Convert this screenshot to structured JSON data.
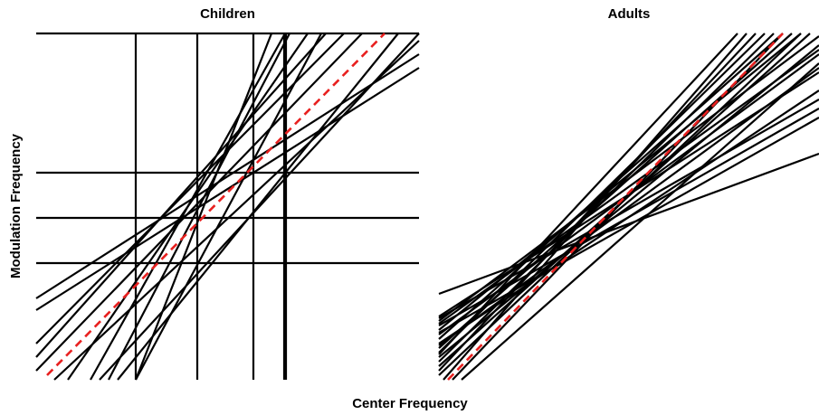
{
  "labels": {
    "x": "Center Frequency",
    "y": "Modulation Frequency"
  },
  "chart_data": [
    {
      "type": "line",
      "title": "Children",
      "xlim": [
        0,
        423
      ],
      "ylim": [
        0,
        383
      ],
      "series": [
        {
          "color": "#000000",
          "x": [
            0,
            423
          ],
          "values": [
            383,
            383
          ]
        },
        {
          "color": "#000000",
          "x": [
            0,
            423
          ],
          "values": [
            229,
            229
          ]
        },
        {
          "color": "#000000",
          "x": [
            0,
            423
          ],
          "values": [
            179,
            179
          ]
        },
        {
          "color": "#000000",
          "x": [
            0,
            423
          ],
          "values": [
            129,
            129
          ]
        },
        {
          "color": "#000000",
          "x": [
            110,
            110
          ],
          "values": [
            0,
            383
          ]
        },
        {
          "color": "#000000",
          "x": [
            178,
            178
          ],
          "values": [
            0,
            383
          ]
        },
        {
          "color": "#000000",
          "x": [
            240,
            240
          ],
          "values": [
            0,
            383
          ]
        },
        {
          "color": "#000000",
          "x": [
            274,
            274
          ],
          "values": [
            0,
            383
          ]
        },
        {
          "color": "#000000",
          "x": [
            276,
            276
          ],
          "values": [
            0,
            383
          ]
        },
        {
          "color": "#000000",
          "x": [
            0,
            423
          ],
          "values": [
            90,
            360
          ]
        },
        {
          "color": "#000000",
          "x": [
            0,
            423
          ],
          "values": [
            77,
            345
          ]
        },
        {
          "color": "#000000",
          "x": [
            0,
            340
          ],
          "values": [
            40,
            383
          ]
        },
        {
          "color": "#000000",
          "x": [
            0,
            320
          ],
          "values": [
            25,
            383
          ]
        },
        {
          "color": "#000000",
          "x": [
            0,
            360
          ],
          "values": [
            10,
            383
          ]
        },
        {
          "color": "#000000",
          "x": [
            35,
            300
          ],
          "values": [
            0,
            383
          ]
        },
        {
          "color": "#000000",
          "x": [
            60,
            275
          ],
          "values": [
            0,
            383
          ]
        },
        {
          "color": "#000000",
          "x": [
            80,
            280
          ],
          "values": [
            0,
            383
          ]
        },
        {
          "color": "#000000",
          "x": [
            110,
            260
          ],
          "values": [
            0,
            383
          ]
        },
        {
          "color": "#000000",
          "x": [
            110,
            315
          ],
          "values": [
            0,
            383
          ]
        },
        {
          "color": "#000000",
          "x": [
            70,
            423
          ],
          "values": [
            0,
            383
          ]
        },
        {
          "color": "#000000",
          "x": [
            20,
            423
          ],
          "values": [
            0,
            375
          ]
        },
        {
          "color": "#000000",
          "x": [
            90,
            400
          ],
          "values": [
            0,
            383
          ]
        },
        {
          "color": "#e8201f",
          "dash": true,
          "x": [
            12,
            385
          ],
          "values": [
            5,
            383
          ]
        }
      ]
    },
    {
      "type": "line",
      "title": "Adults",
      "xlim": [
        0,
        420
      ],
      "ylim": [
        0,
        383
      ],
      "series": [
        {
          "color": "#000000",
          "x": [
            0,
            420
          ],
          "values": [
            95,
            250
          ]
        },
        {
          "color": "#000000",
          "x": [
            0,
            420
          ],
          "values": [
            70,
            340
          ]
        },
        {
          "color": "#000000",
          "x": [
            0,
            420
          ],
          "values": [
            65,
            380
          ]
        },
        {
          "color": "#000000",
          "x": [
            0,
            420
          ],
          "values": [
            60,
            300
          ]
        },
        {
          "color": "#000000",
          "x": [
            0,
            400
          ],
          "values": [
            55,
            383
          ]
        },
        {
          "color": "#000000",
          "x": [
            0,
            420
          ],
          "values": [
            50,
            360
          ]
        },
        {
          "color": "#000000",
          "x": [
            0,
            380
          ],
          "values": [
            45,
            383
          ]
        },
        {
          "color": "#000000",
          "x": [
            0,
            420
          ],
          "values": [
            40,
            320
          ]
        },
        {
          "color": "#000000",
          "x": [
            0,
            390
          ],
          "values": [
            35,
            383
          ]
        },
        {
          "color": "#000000",
          "x": [
            0,
            360
          ],
          "values": [
            30,
            383
          ]
        },
        {
          "color": "#000000",
          "x": [
            0,
            420
          ],
          "values": [
            25,
            370
          ]
        },
        {
          "color": "#000000",
          "x": [
            0,
            370
          ],
          "values": [
            20,
            383
          ]
        },
        {
          "color": "#000000",
          "x": [
            0,
            410
          ],
          "values": [
            15,
            383
          ]
        },
        {
          "color": "#000000",
          "x": [
            0,
            350
          ],
          "values": [
            10,
            383
          ]
        },
        {
          "color": "#000000",
          "x": [
            0,
            400
          ],
          "values": [
            5,
            383
          ]
        },
        {
          "color": "#000000",
          "x": [
            5,
            340
          ],
          "values": [
            0,
            383
          ]
        },
        {
          "color": "#000000",
          "x": [
            15,
            380
          ],
          "values": [
            0,
            383
          ]
        },
        {
          "color": "#000000",
          "x": [
            25,
            420
          ],
          "values": [
            0,
            350
          ]
        },
        {
          "color": "#000000",
          "x": [
            0,
            420
          ],
          "values": [
            68,
            310
          ]
        },
        {
          "color": "#000000",
          "x": [
            0,
            420
          ],
          "values": [
            52,
            290
          ]
        },
        {
          "color": "#000000",
          "x": [
            0,
            420
          ],
          "values": [
            38,
            345
          ]
        },
        {
          "color": "#000000",
          "x": [
            0,
            330
          ],
          "values": [
            28,
            383
          ]
        },
        {
          "color": "#000000",
          "x": [
            0,
            420
          ],
          "values": [
            62,
            365
          ]
        },
        {
          "color": "#e8201f",
          "dash": true,
          "x": [
            10,
            380
          ],
          "values": [
            0,
            383
          ]
        }
      ]
    }
  ]
}
